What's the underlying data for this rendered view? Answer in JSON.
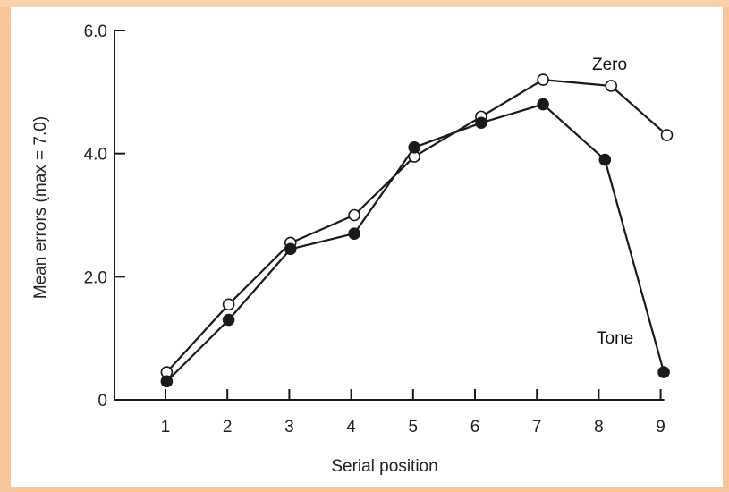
{
  "chart_data": {
    "type": "line",
    "title": "",
    "xlabel": "Serial position",
    "ylabel": "Mean errors (max = 7.0)",
    "x": [
      1,
      2,
      3,
      4,
      5,
      6,
      7,
      8,
      9
    ],
    "xlim": [
      0.5,
      9
    ],
    "ylim": [
      0,
      6.0
    ],
    "x_ticks": [
      "1",
      "2",
      "3",
      "4",
      "5",
      "6",
      "7",
      "8",
      "9"
    ],
    "y_ticks": [
      {
        "value": 0,
        "label": "0"
      },
      {
        "value": 2.0,
        "label": "2.0"
      },
      {
        "value": 4.0,
        "label": "4.0"
      },
      {
        "value": 6.0,
        "label": "6.0"
      }
    ],
    "grid": false,
    "series": [
      {
        "name": "Zero",
        "marker": "open-circle",
        "x": [
          1.02,
          2.02,
          3.02,
          4.05,
          5.02,
          6.1,
          7.1,
          8.2,
          9.1
        ],
        "values": [
          0.45,
          1.55,
          2.55,
          3.0,
          3.95,
          4.6,
          5.2,
          5.1,
          4.3
        ]
      },
      {
        "name": "Tone",
        "marker": "filled-circle",
        "x": [
          1.02,
          2.02,
          3.02,
          4.05,
          5.02,
          6.1,
          7.1,
          8.1,
          9.05
        ],
        "values": [
          0.3,
          1.3,
          2.45,
          2.7,
          4.1,
          4.5,
          4.8,
          3.9,
          0.45
        ]
      }
    ],
    "colors": {
      "line": "#1a1a1a",
      "background": "#ffffff",
      "border": "#f7c59a"
    }
  }
}
